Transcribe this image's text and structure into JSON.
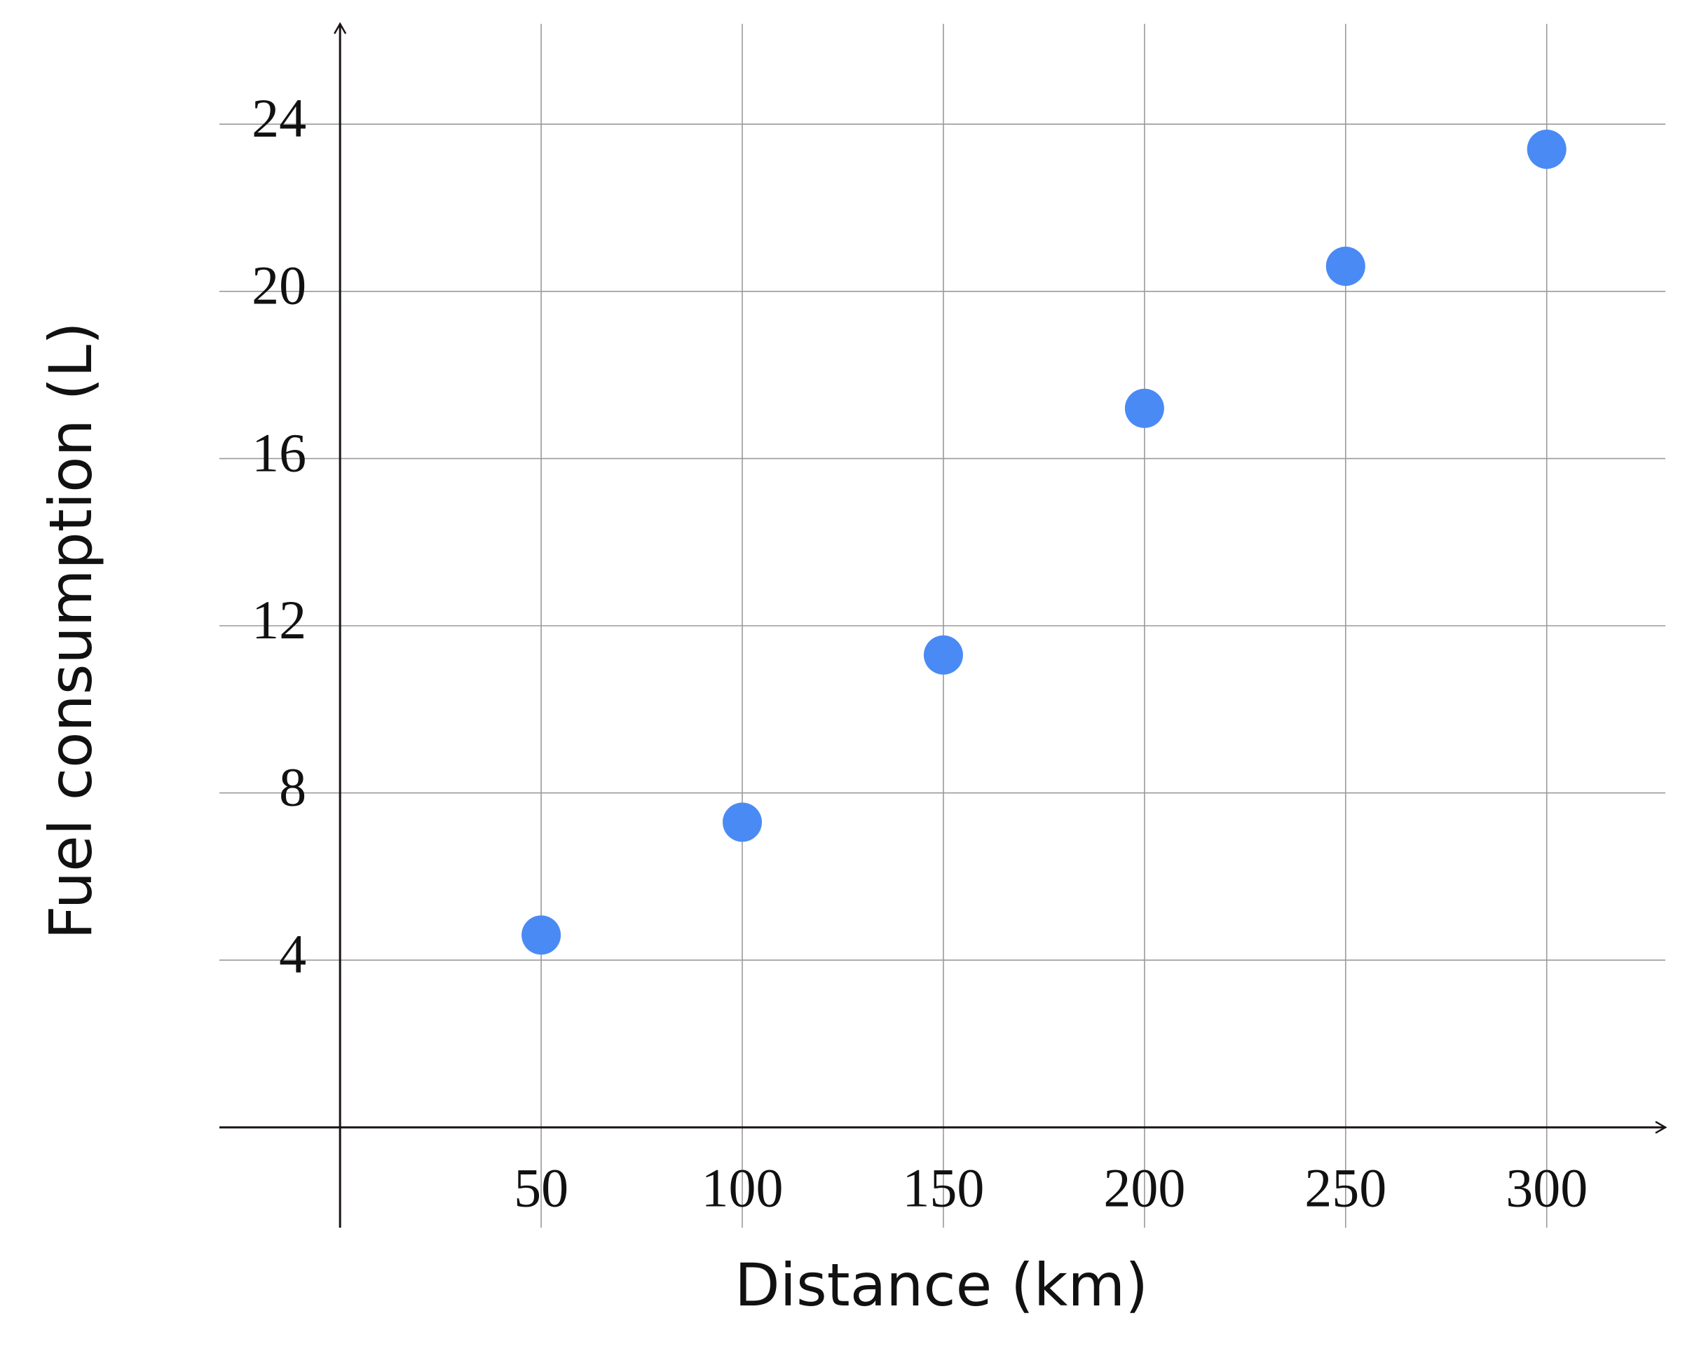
{
  "chart_data": {
    "type": "scatter",
    "x_label": "Distance (km)",
    "y_label": "Fuel consumption (L)",
    "x": [
      50,
      100,
      150,
      200,
      250,
      300
    ],
    "values": [
      4.6,
      7.3,
      11.3,
      17.2,
      20.6,
      23.4
    ],
    "color": "#4a8af4",
    "xlim": [
      -30,
      329.5
    ],
    "ylim": [
      -2.4,
      26.4
    ],
    "xticks": [
      50,
      100,
      150,
      200,
      250,
      300
    ],
    "yticks": [
      4,
      8,
      12,
      16,
      20,
      24
    ],
    "grid": true
  }
}
